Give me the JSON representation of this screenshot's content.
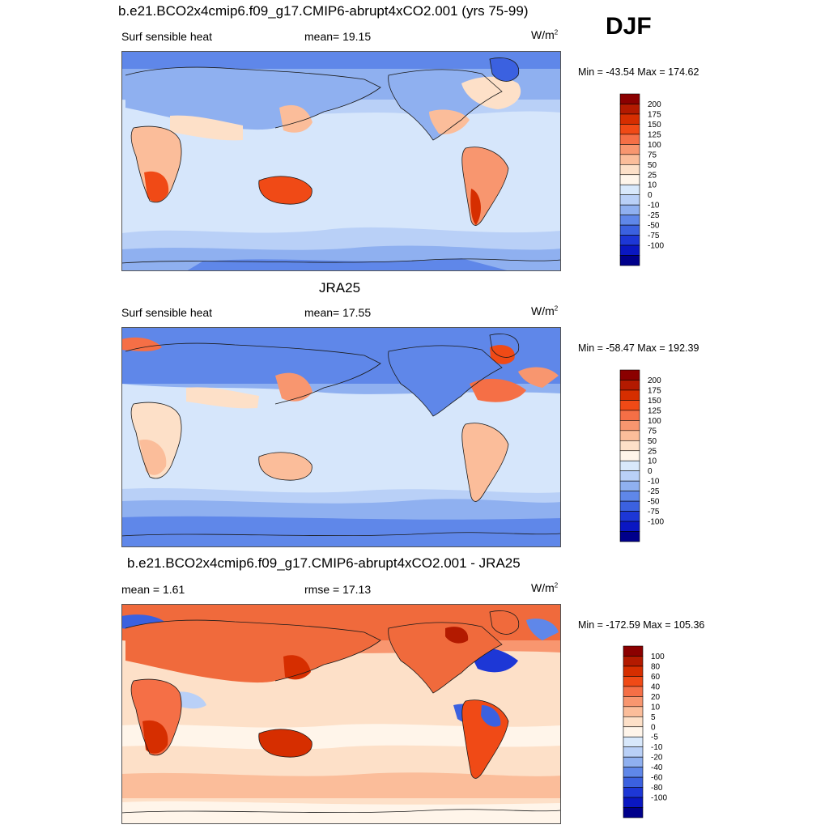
{
  "season": "DJF",
  "panels": [
    {
      "title": "b.e21.BCO2x4cmip6.f09_g17.CMIP6-abrupt4xCO2.001 (yrs 75-99)",
      "left_label": "Surf sensible heat",
      "center_label": "mean=  19.15",
      "units_base": "W/m",
      "units_exp": "2",
      "minmax": "Min = -43.54 Max = 174.62",
      "colorbar": {
        "ticks": [
          "200",
          "175",
          "150",
          "125",
          "100",
          "75",
          "50",
          "25",
          "10",
          "0",
          "-10",
          "-25",
          "-50",
          "-75",
          "-100"
        ],
        "colors": [
          "#8b0000",
          "#b31a00",
          "#d62e00",
          "#f04a16",
          "#f56f46",
          "#f8966f",
          "#fbbd9a",
          "#fde0c8",
          "#fff5ea",
          "#d8e8fb",
          "#b9d0f7",
          "#8fb0f0",
          "#5f87e9",
          "#3b61e0",
          "#1d37d6",
          "#0a17c2",
          "#00008b"
        ]
      }
    },
    {
      "title": "JRA25",
      "left_label": "Surf sensible heat",
      "center_label": "mean=  17.55",
      "units_base": "W/m",
      "units_exp": "2",
      "minmax": "Min = -58.47 Max = 192.39",
      "colorbar": {
        "ticks": [
          "200",
          "175",
          "150",
          "125",
          "100",
          "75",
          "50",
          "25",
          "10",
          "0",
          "-10",
          "-25",
          "-50",
          "-75",
          "-100"
        ],
        "colors": [
          "#8b0000",
          "#b31a00",
          "#d62e00",
          "#f04a16",
          "#f56f46",
          "#f8966f",
          "#fbbd9a",
          "#fde0c8",
          "#fff5ea",
          "#d8e8fb",
          "#b9d0f7",
          "#8fb0f0",
          "#5f87e9",
          "#3b61e0",
          "#1d37d6",
          "#0a17c2",
          "#00008b"
        ]
      }
    },
    {
      "title": "b.e21.BCO2x4cmip6.f09_g17.CMIP6-abrupt4xCO2.001 - JRA25",
      "left_label": "mean =   1.61",
      "center_label": "rmse =  17.13",
      "units_base": "W/m",
      "units_exp": "2",
      "minmax": "Min = -172.59 Max = 105.36",
      "colorbar": {
        "ticks": [
          "100",
          "80",
          "60",
          "40",
          "20",
          "10",
          "5",
          "0",
          "-5",
          "-10",
          "-20",
          "-40",
          "-60",
          "-80",
          "-100"
        ],
        "colors": [
          "#8b0000",
          "#b31a00",
          "#d62e00",
          "#f04a16",
          "#f56f46",
          "#f8966f",
          "#fbbd9a",
          "#fde0c8",
          "#fff5ea",
          "#d8e8fb",
          "#b9d0f7",
          "#8fb0f0",
          "#5f87e9",
          "#3b61e0",
          "#1d37d6",
          "#0a17c2",
          "#00008b"
        ]
      }
    }
  ],
  "palette": {
    "ocean_light": "#d6e6fb",
    "ocean_mid": "#a9c4f4",
    "polar_blue": "#5f87e9",
    "deep_blue": "#3b61e0",
    "land_warm": "#f8966f",
    "land_hot": "#e8501e",
    "land_pale": "#fde0c8",
    "diff_red": "#f06a3c",
    "coast": "#1a1a1a"
  }
}
